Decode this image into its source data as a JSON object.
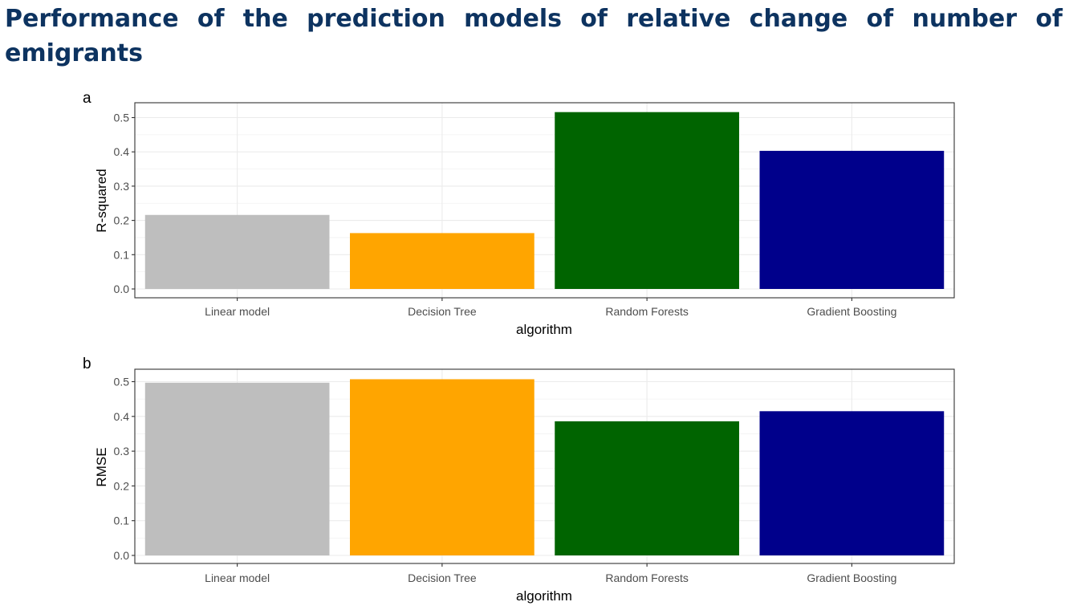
{
  "title": "Performance of the prediction models of relative change of number of emigrants",
  "colors": {
    "Linear model": "#bebebe",
    "Decision Tree": "#ffa500",
    "Random Forests": "#006400",
    "Gradient Boosting": "#00008b"
  },
  "chart_data": [
    {
      "type": "bar",
      "panel": "a",
      "categories": [
        "Linear model",
        "Decision Tree",
        "Random Forests",
        "Gradient Boosting"
      ],
      "values": [
        0.216,
        0.163,
        0.516,
        0.403
      ],
      "xlabel": "algorithm",
      "ylabel": "R-squared",
      "ylim": [
        0,
        0.5
      ],
      "yticks": [
        "0.0",
        "0.1",
        "0.2",
        "0.3",
        "0.4",
        "0.5"
      ],
      "grid": true,
      "legend": "none"
    },
    {
      "type": "bar",
      "panel": "b",
      "categories": [
        "Linear model",
        "Decision Tree",
        "Random Forests",
        "Gradient Boosting"
      ],
      "values": [
        0.497,
        0.507,
        0.386,
        0.415
      ],
      "xlabel": "algorithm",
      "ylabel": "RMSE",
      "ylim": [
        0,
        0.5
      ],
      "yticks": [
        "0.0",
        "0.1",
        "0.2",
        "0.3",
        "0.4",
        "0.5"
      ],
      "grid": true,
      "legend": "none"
    }
  ]
}
